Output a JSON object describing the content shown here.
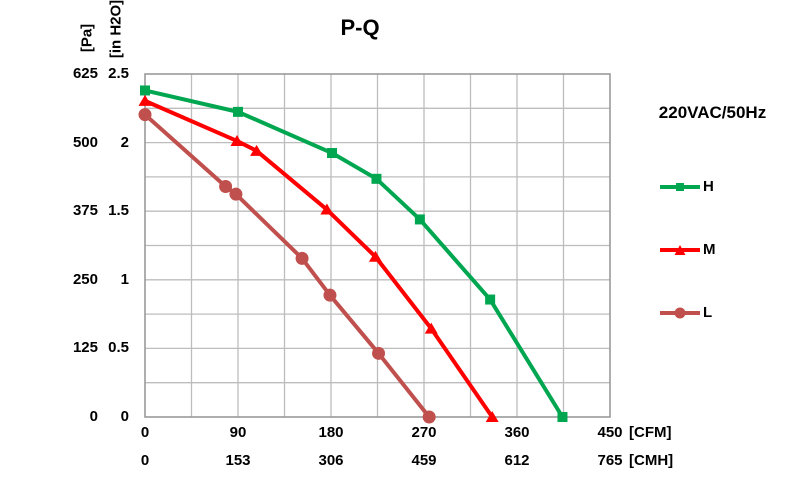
{
  "chart_data": {
    "type": "line",
    "title": "P-Q",
    "legend_title": "220VAC/50Hz",
    "legend_position": "right",
    "grid": {
      "on": true,
      "x_divisions": 10,
      "y_divisions": 10
    },
    "x_axis": {
      "primary": {
        "unit_label": "[CFM]",
        "ticks": [
          "0",
          "90",
          "180",
          "270",
          "360",
          "450"
        ],
        "range": [
          0,
          450
        ]
      },
      "secondary": {
        "unit_label": "[CMH]",
        "ticks": [
          "0",
          "153",
          "306",
          "459",
          "612",
          "765"
        ],
        "range": [
          0,
          765
        ]
      }
    },
    "y_axis": {
      "primary": {
        "unit_label": "[Pa]",
        "ticks": [
          "625",
          "500",
          "375",
          "250",
          "125",
          "0"
        ],
        "range": [
          0,
          625
        ]
      },
      "secondary": {
        "unit_label": "[in H2O]",
        "ticks": [
          "2.5",
          "2",
          "1.5",
          "1",
          "0.5",
          "0"
        ],
        "range": [
          0,
          2.5
        ]
      }
    },
    "series": [
      {
        "name": "H",
        "color": "#00A750",
        "marker": "square",
        "points_cfm_pa": [
          [
            0,
            595
          ],
          [
            90,
            556
          ],
          [
            181,
            481
          ],
          [
            224,
            434
          ],
          [
            266,
            360
          ],
          [
            334,
            214
          ],
          [
            404,
            0
          ]
        ]
      },
      {
        "name": "M",
        "color": "#FF0000",
        "marker": "triangle",
        "points_cfm_pa": [
          [
            0,
            576
          ],
          [
            89,
            503
          ],
          [
            108,
            485
          ],
          [
            176,
            378
          ],
          [
            223,
            292
          ],
          [
            277,
            161
          ],
          [
            336,
            0
          ]
        ]
      },
      {
        "name": "L",
        "color": "#C0504D",
        "marker": "circle",
        "points_cfm_pa": [
          [
            0,
            551
          ],
          [
            78,
            420
          ],
          [
            88,
            406
          ],
          [
            152,
            289
          ],
          [
            179,
            222
          ],
          [
            226,
            116
          ],
          [
            275,
            0
          ]
        ]
      }
    ],
    "colors": {
      "grid": "#BDBDBD",
      "plot_border": "#9A9A9A",
      "text": "#000000"
    }
  }
}
